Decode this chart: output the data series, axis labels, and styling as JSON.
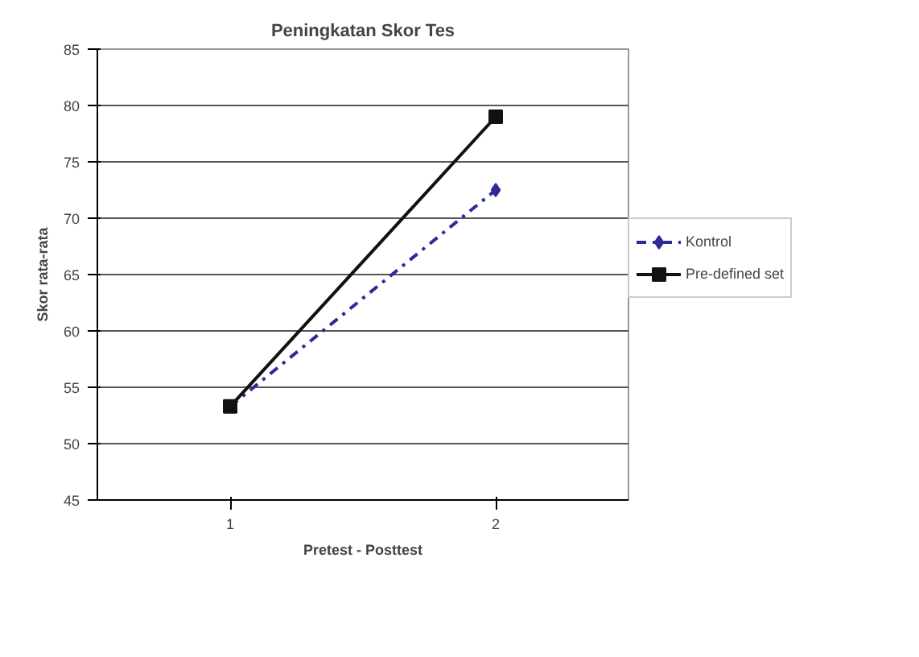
{
  "chart_data": {
    "type": "line",
    "title": "Peningkatan Skor Tes",
    "xlabel": "Pretest - Posttest",
    "ylabel": "Skor rata-rata",
    "categories": [
      "1",
      "2"
    ],
    "series": [
      {
        "name": "Kontrol",
        "color": "#2b2b99",
        "values": [
          53.3,
          72.5
        ],
        "marker": "diamond",
        "line_style": "dashed"
      },
      {
        "name": "Pre-defined set",
        "color": "#111111",
        "values": [
          53.3,
          79
        ],
        "marker": "square",
        "line_style": "solid"
      }
    ],
    "ylim": [
      45,
      85
    ],
    "yticks": [
      45,
      50,
      55,
      60,
      65,
      70,
      75,
      80,
      85
    ],
    "grid": "y",
    "legend": "right"
  }
}
